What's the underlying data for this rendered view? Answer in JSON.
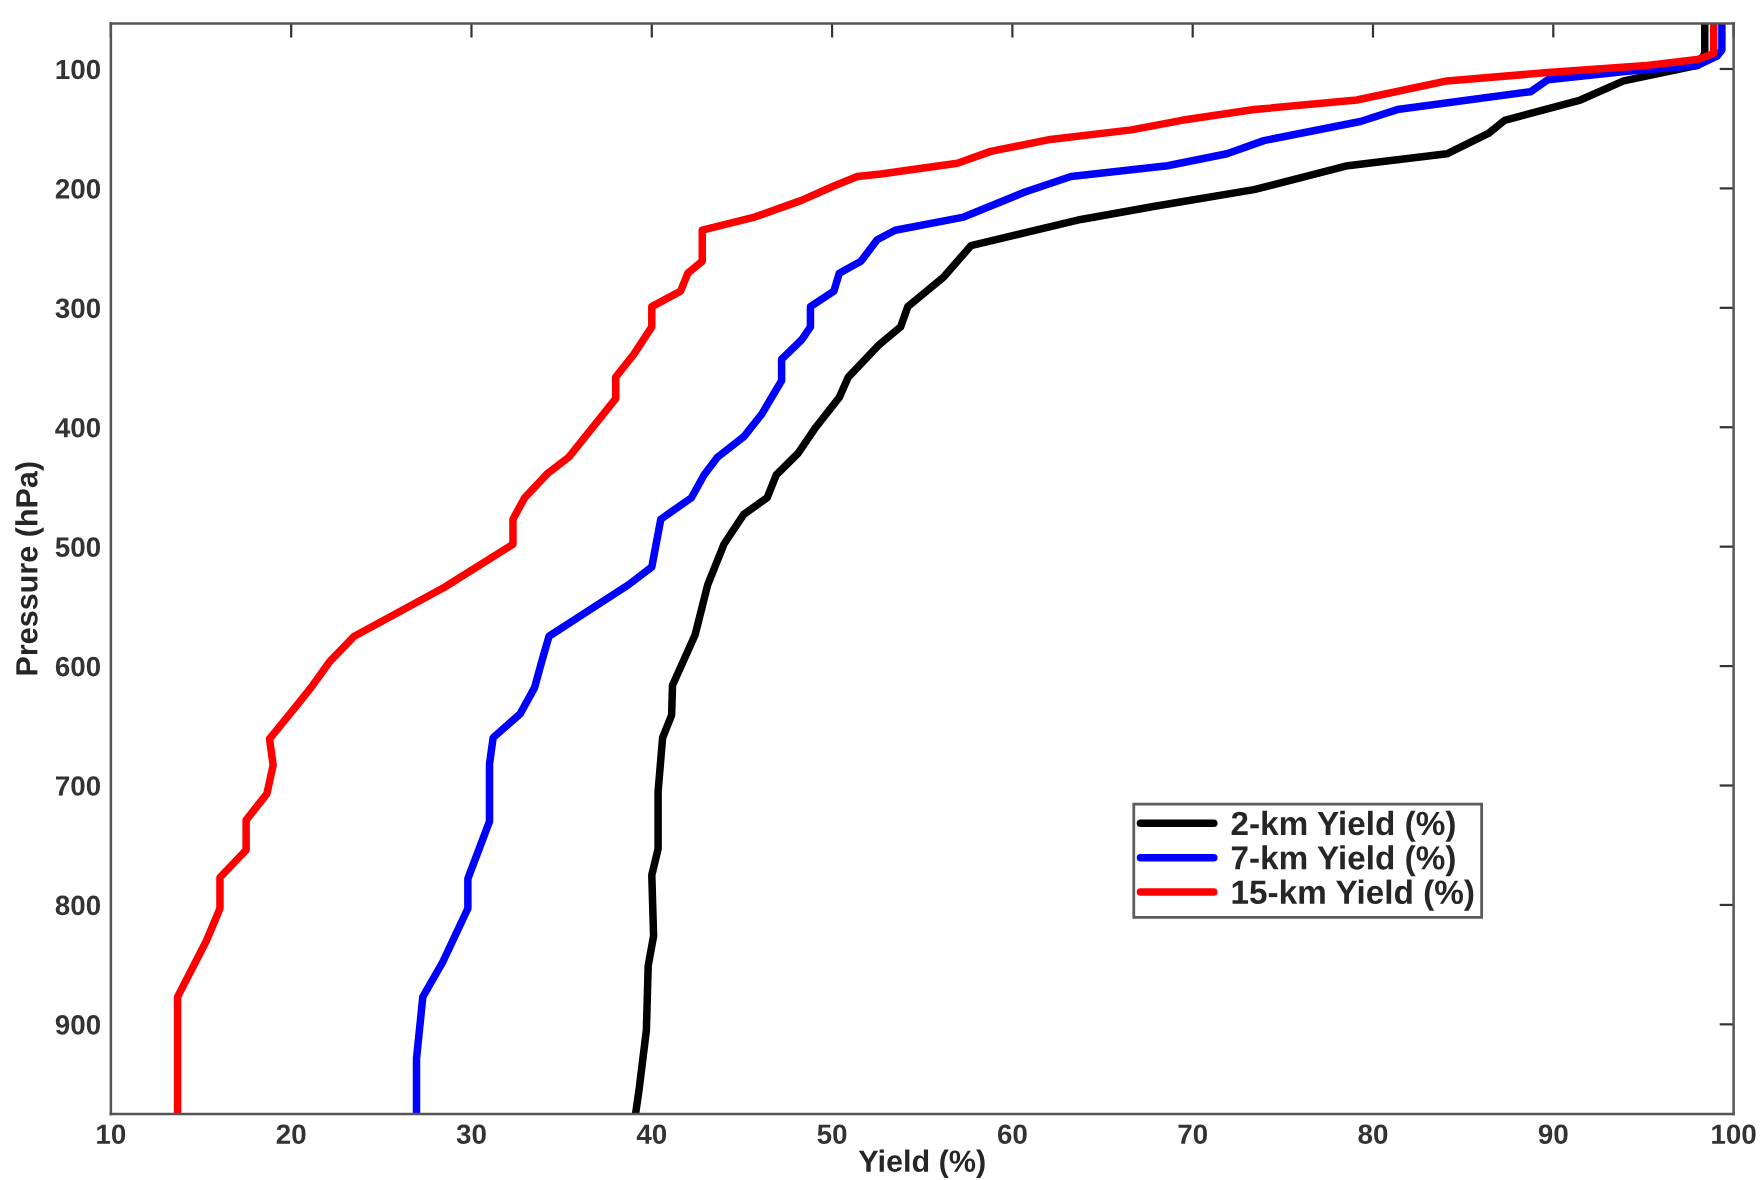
{
  "chart_data": {
    "type": "line",
    "xlabel": "Yield (%)",
    "ylabel": "Pressure (hPa)",
    "xlim": [
      10,
      100
    ],
    "xticks": [
      10,
      20,
      30,
      40,
      50,
      60,
      70,
      80,
      90,
      100
    ],
    "ylim": [
      975,
      62
    ],
    "yticks": [
      100,
      200,
      300,
      400,
      500,
      600,
      700,
      800,
      900
    ],
    "grid": false,
    "legend": "bottom right",
    "line_style": "solid",
    "marker": "none",
    "series": [
      {
        "name": "2-km Yield (%)",
        "color": "#000000",
        "x": [
          39.1,
          39.3,
          39.7,
          39.8,
          40.1,
          40.0,
          40.35,
          40.35,
          40.6,
          41.1,
          41.15,
          42.4,
          43.1,
          44.0,
          45.1,
          46.4,
          46.9,
          48.1,
          49.1,
          50.4,
          50.9,
          52.6,
          53.8,
          54.2,
          56.2,
          57.7,
          63.8,
          67.9,
          73.4,
          78.6,
          84.1,
          86.4,
          87.3,
          91.5,
          93.9,
          98.0,
          98.4,
          98.4
        ],
        "values": [
          975,
          954,
          905,
          851,
          826,
          775,
          753,
          705,
          660,
          641,
          616,
          574,
          532,
          498,
          473,
          459,
          440,
          422,
          400,
          375,
          358,
          331,
          316,
          299,
          274,
          248,
          226,
          215,
          201,
          181,
          171,
          154,
          143,
          126,
          110,
          97,
          87,
          62
        ]
      },
      {
        "name": "7-km Yield (%)",
        "color": "#0000ff",
        "x": [
          26.95,
          26.95,
          27.3,
          28.4,
          29.8,
          29.8,
          31.0,
          31.0,
          31.2,
          32.7,
          33.5,
          33.9,
          34.3,
          36.45,
          38.7,
          40.0,
          40.5,
          42.2,
          42.9,
          43.65,
          45.1,
          46.1,
          47.2,
          47.2,
          48.3,
          48.8,
          48.8,
          50.1,
          50.4,
          51.6,
          52.5,
          53.5,
          57.3,
          60.7,
          63.25,
          68.6,
          71.9,
          73.95,
          79.3,
          81.35,
          88.75,
          89.7,
          94.1,
          98.0,
          99.1,
          99.35,
          99.35
        ],
        "values": [
          975,
          929,
          877,
          848,
          803,
          778,
          730,
          682,
          660,
          640,
          618,
          596,
          575,
          554,
          532,
          517,
          477,
          459,
          440,
          425,
          408,
          389,
          361,
          343,
          327,
          316,
          299,
          286,
          271,
          261,
          243,
          235,
          224,
          203,
          190,
          181,
          171,
          160,
          144,
          134,
          119,
          109,
          102,
          97,
          89,
          84,
          62
        ]
      },
      {
        "name": "15-km Yield (%)",
        "color": "#ff0000",
        "x": [
          13.7,
          13.7,
          15.3,
          16.05,
          16.05,
          17.5,
          17.5,
          18.65,
          19.0,
          18.8,
          20.2,
          21.1,
          22.15,
          23.5,
          25.7,
          28.5,
          32.3,
          32.3,
          32.95,
          34.2,
          35.4,
          38.0,
          38.0,
          39.0,
          40.0,
          40.0,
          41.6,
          42.0,
          42.8,
          42.8,
          45.7,
          48.3,
          50.1,
          51.4,
          52.7,
          56.95,
          58.8,
          62.1,
          66.6,
          69.4,
          73.4,
          79.1,
          84.1,
          89.7,
          95.2,
          98.0,
          98.9,
          98.9
        ],
        "values": [
          975,
          877,
          830,
          803,
          777,
          754,
          729,
          707,
          683,
          661,
          635,
          618,
          596,
          575,
          557,
          534,
          498,
          477,
          459,
          439,
          425,
          376,
          358,
          339,
          316,
          299,
          286,
          271,
          261,
          235,
          224,
          210,
          198,
          190,
          188,
          179,
          169,
          159,
          151,
          143,
          134,
          126,
          110,
          103,
          97,
          92,
          87,
          62
        ]
      }
    ]
  }
}
